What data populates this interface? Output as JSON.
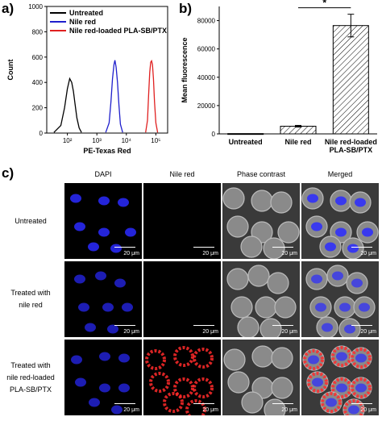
{
  "panels": {
    "a": "a)",
    "b": "b)",
    "c": "c)"
  },
  "chart_data": [
    {
      "type": "line",
      "panel": "a)",
      "xlabel": "PE-Texas Red",
      "ylabel": "Count",
      "xscale": "log",
      "xlim_exp": [
        1.3,
        5.4
      ],
      "ylim": [
        0,
        1000
      ],
      "x_tick_labels": [
        "10²",
        "10³",
        "10⁴",
        "10⁵"
      ],
      "x_tick_values": [
        100,
        1000,
        10000,
        100000
      ],
      "y_ticks": [
        0,
        200,
        400,
        600,
        800,
        1000
      ],
      "legend_position": "top-left",
      "series": [
        {
          "name": "Untreated",
          "color": "#000000",
          "x": [
            35,
            60,
            80,
            100,
            120,
            140,
            160,
            180,
            210,
            250,
            300
          ],
          "y": [
            5,
            60,
            200,
            350,
            430,
            400,
            330,
            240,
            120,
            40,
            5
          ]
        },
        {
          "name": "Nile red",
          "color": "#1f1fcc",
          "x": [
            2000,
            2600,
            3000,
            3400,
            3800,
            4100,
            4500,
            5000,
            5600,
            6300,
            7500
          ],
          "y": [
            5,
            80,
            250,
            430,
            540,
            575,
            520,
            400,
            220,
            70,
            5
          ]
        },
        {
          "name": "Nile red-loaded PLA-SB/PTX",
          "color": "#e02020",
          "x": [
            45000,
            52000,
            57000,
            62000,
            67000,
            72000,
            77000,
            83000,
            90000,
            100000,
            115000
          ],
          "y": [
            5,
            100,
            300,
            480,
            560,
            570,
            540,
            430,
            250,
            80,
            5
          ]
        }
      ]
    },
    {
      "type": "bar",
      "panel": "b)",
      "ylabel": "Mean fluorescence",
      "categories": [
        "Untreated",
        "Nile red",
        "Nile red-loaded PLA-SB/PTX"
      ],
      "values": [
        200,
        5400,
        76500
      ],
      "errors": [
        0,
        600,
        8000
      ],
      "ylim": [
        0,
        90000
      ],
      "y_ticks": [
        0,
        20000,
        40000,
        60000,
        80000
      ],
      "significance": "*"
    }
  ],
  "microscopy": {
    "columns": [
      "DAPI",
      "Nile red",
      "Phase contrast",
      "Merged"
    ],
    "rows": [
      {
        "label": [
          "Untreated"
        ]
      },
      {
        "label": [
          "Treated with",
          "nile red"
        ]
      },
      {
        "label": [
          "Treated with",
          "nile red-loaded",
          "PLA-SB/PTX"
        ]
      }
    ],
    "scale_bar": "20 μm",
    "colors": {
      "dapi": "#2a2aff",
      "nile": "#ff2a2a",
      "phase_bg": "#3a3a3a",
      "phase_cell": "#8a8a8a"
    }
  }
}
